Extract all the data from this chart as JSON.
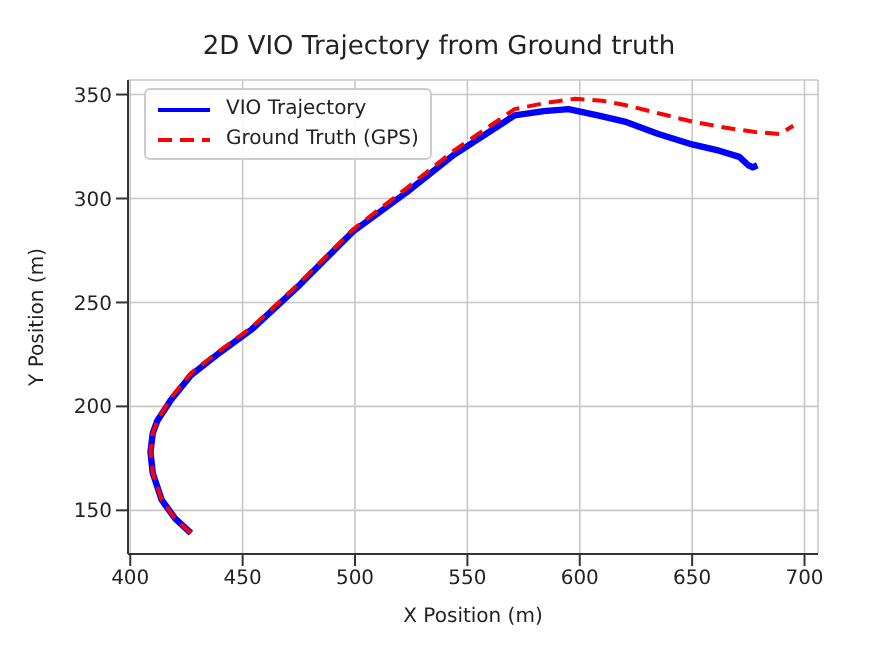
{
  "chart_data": {
    "type": "line",
    "title": "2D VIO Trajectory from Ground truth",
    "xlabel": "X Position (m)",
    "ylabel": "Y Position (m)",
    "series": [
      {
        "name": "VIO Trajectory",
        "color": "#0000ff",
        "line_style": "solid",
        "x": [
          427,
          420,
          414,
          410,
          409,
          410,
          412,
          418,
          427,
          440,
          454,
          474,
          499,
          523,
          544,
          571,
          584,
          595,
          608,
          620,
          635,
          650,
          662,
          671,
          675,
          677,
          679
        ],
        "values": [
          139,
          146,
          155,
          168,
          178,
          187,
          193,
          203,
          215,
          226,
          237,
          257,
          284,
          303,
          321,
          340,
          342,
          343,
          340,
          337,
          331,
          326,
          323,
          320,
          316,
          315,
          316
        ]
      },
      {
        "name": "Ground Truth (GPS)",
        "color": "#ff0000",
        "line_style": "dashed",
        "x": [
          427,
          420,
          414,
          410,
          409,
          410,
          412,
          418,
          427,
          440,
          454,
          474,
          499,
          523,
          544,
          571,
          585,
          598,
          610,
          620,
          635,
          650,
          665,
          678,
          689,
          695
        ],
        "values": [
          139,
          146,
          155,
          168,
          178,
          187,
          193,
          204,
          216,
          227,
          238,
          258,
          285,
          305,
          323,
          343,
          346,
          348,
          347,
          345,
          341,
          337,
          334,
          332,
          331,
          335
        ]
      }
    ],
    "xlim": [
      399,
      706
    ],
    "ylim": [
      129,
      357
    ],
    "xticks": [
      400,
      450,
      500,
      550,
      600,
      650,
      700
    ],
    "yticks": [
      150,
      200,
      250,
      300,
      350
    ],
    "grid": true,
    "legend": "top left",
    "marker": "none"
  }
}
